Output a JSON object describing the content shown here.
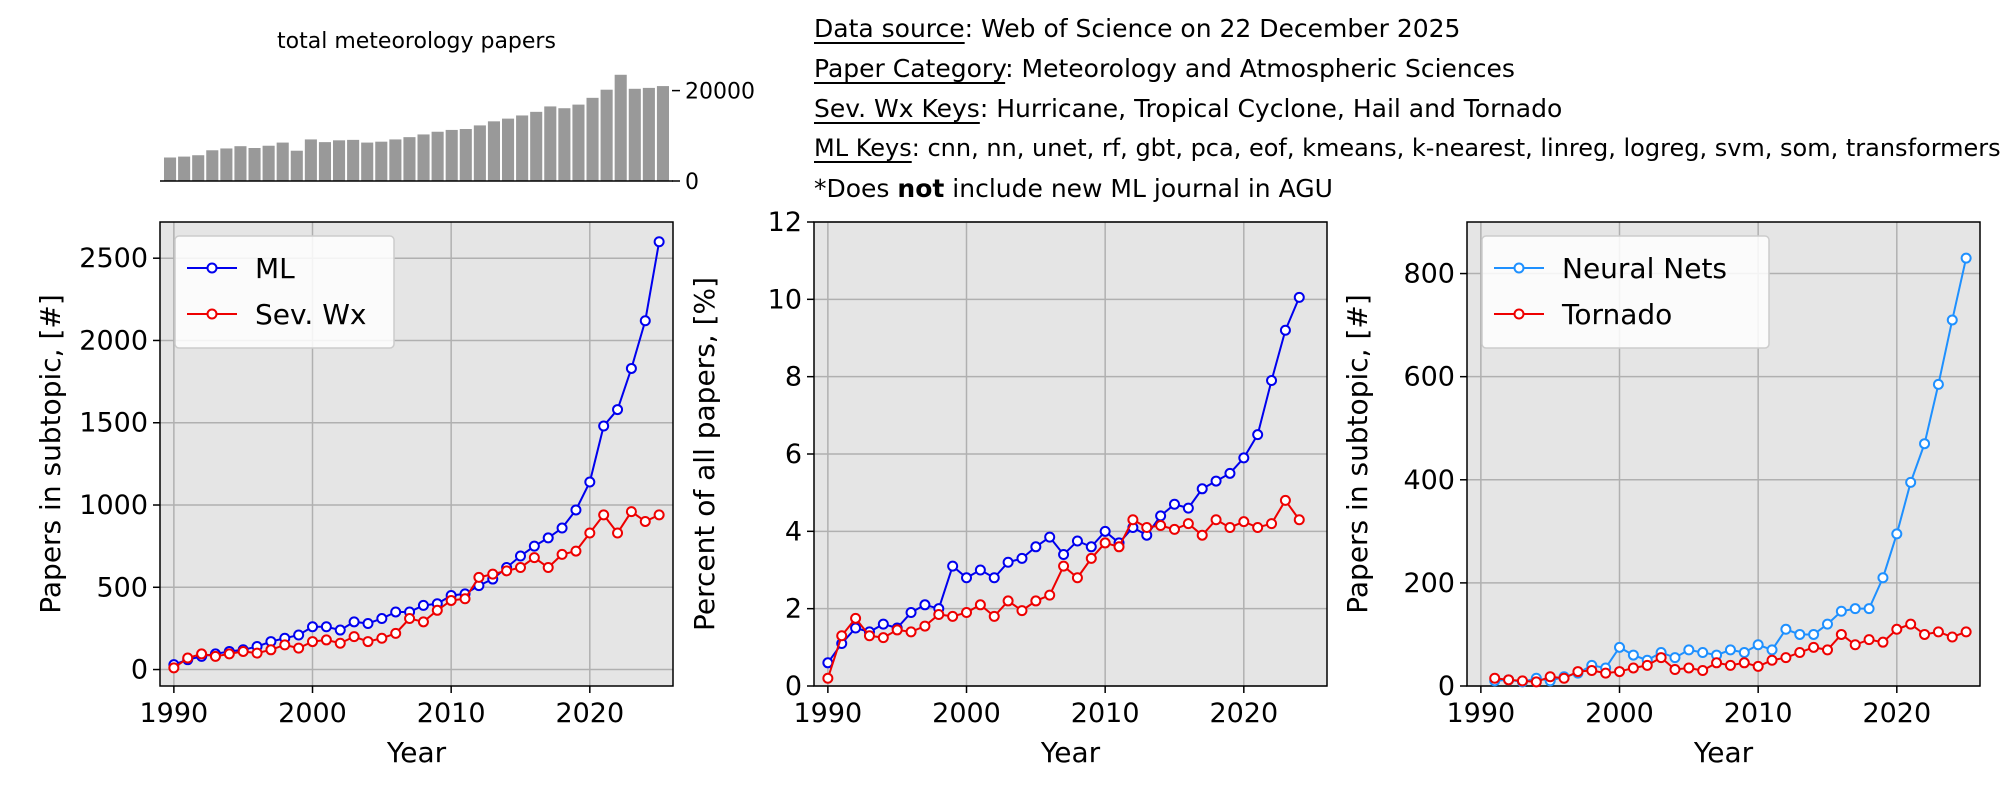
{
  "info": {
    "lines": [
      {
        "key": "Data source",
        "value": "Web of Science on 22 December 2025"
      },
      {
        "key": "Paper Category",
        "value": "Meteorology and Atmospheric Sciences"
      },
      {
        "key": "Sev. Wx Keys",
        "value": "Hurricane, Tropical Cyclone, Hail and Tornado"
      },
      {
        "key": "ML Keys",
        "value": "cnn, nn, unet, rf, gbt, pca, eof, kmeans, k-nearest, linreg, logreg, svm, som, transformers"
      }
    ],
    "note": {
      "prefix": "*Does ",
      "bold": "not",
      "suffix": " include new ML journal in AGU"
    }
  },
  "chart_data": [
    {
      "id": "total",
      "type": "bar",
      "title": "total meteorology papers",
      "x": [
        1990,
        1991,
        1992,
        1993,
        1994,
        1995,
        1996,
        1997,
        1998,
        1999,
        2000,
        2001,
        2002,
        2003,
        2004,
        2005,
        2006,
        2007,
        2008,
        2009,
        2010,
        2011,
        2012,
        2013,
        2014,
        2015,
        2016,
        2017,
        2018,
        2019,
        2020,
        2021,
        2022,
        2023,
        2024,
        2025
      ],
      "values": [
        5200,
        5400,
        5700,
        6800,
        7200,
        7700,
        7300,
        7800,
        8500,
        6700,
        9200,
        8600,
        9000,
        9100,
        8500,
        8700,
        9200,
        9700,
        10300,
        10900,
        11300,
        11500,
        12300,
        13200,
        13800,
        14500,
        15300,
        16500,
        16100,
        16900,
        18400,
        20200,
        23500,
        20400,
        20600,
        21000
      ],
      "yticks": [
        0,
        20000
      ],
      "ylim": [
        0,
        25000
      ],
      "color": "#999999"
    },
    {
      "id": "left",
      "type": "line",
      "xlabel": "Year",
      "ylabel": "Papers in subtopic, [#]",
      "xlim": [
        1989,
        2026
      ],
      "ylim": [
        -100,
        2720
      ],
      "xticks": [
        1990,
        2000,
        2010,
        2020
      ],
      "yticks": [
        0,
        500,
        1000,
        1500,
        2000,
        2500
      ],
      "legend": "top-left",
      "grid": true,
      "series": [
        {
          "name": "ML",
          "color": "#0000ee",
          "x": [
            1990,
            1991,
            1992,
            1993,
            1994,
            1995,
            1996,
            1997,
            1998,
            1999,
            2000,
            2001,
            2002,
            2003,
            2004,
            2005,
            2006,
            2007,
            2008,
            2009,
            2010,
            2011,
            2012,
            2013,
            2014,
            2015,
            2016,
            2017,
            2018,
            2019,
            2020,
            2021,
            2022,
            2023,
            2024,
            2025
          ],
          "y": [
            30,
            60,
            80,
            95,
            110,
            120,
            140,
            170,
            190,
            210,
            260,
            260,
            240,
            290,
            280,
            310,
            350,
            350,
            390,
            400,
            450,
            460,
            510,
            550,
            620,
            690,
            750,
            800,
            860,
            970,
            1140,
            1480,
            1580,
            1830,
            2120,
            2600
          ]
        },
        {
          "name": "Sev. Wx",
          "color": "#ee0000",
          "x": [
            1990,
            1991,
            1992,
            1993,
            1994,
            1995,
            1996,
            1997,
            1998,
            1999,
            2000,
            2001,
            2002,
            2003,
            2004,
            2005,
            2006,
            2007,
            2008,
            2009,
            2010,
            2011,
            2012,
            2013,
            2014,
            2015,
            2016,
            2017,
            2018,
            2019,
            2020,
            2021,
            2022,
            2023,
            2024,
            2025
          ],
          "y": [
            10,
            70,
            95,
            80,
            95,
            110,
            100,
            120,
            150,
            130,
            170,
            180,
            160,
            200,
            170,
            190,
            220,
            310,
            290,
            360,
            420,
            430,
            560,
            580,
            600,
            620,
            680,
            620,
            700,
            720,
            830,
            940,
            830,
            960,
            900,
            940
          ]
        }
      ]
    },
    {
      "id": "middle",
      "type": "line",
      "xlabel": "Year",
      "ylabel": "Percent of all papers, [%]",
      "xlim": [
        1989,
        2026
      ],
      "ylim": [
        0,
        12
      ],
      "xticks": [
        1990,
        2000,
        2010,
        2020
      ],
      "yticks": [
        0,
        2,
        4,
        6,
        8,
        10,
        12
      ],
      "grid": true,
      "series": [
        {
          "name": "ML",
          "color": "#0000ee",
          "x": [
            1990,
            1991,
            1992,
            1993,
            1994,
            1995,
            1996,
            1997,
            1998,
            1999,
            2000,
            2001,
            2002,
            2003,
            2004,
            2005,
            2006,
            2007,
            2008,
            2009,
            2010,
            2011,
            2012,
            2013,
            2014,
            2015,
            2016,
            2017,
            2018,
            2019,
            2020,
            2021,
            2022,
            2023,
            2024
          ],
          "y": [
            0.6,
            1.1,
            1.5,
            1.4,
            1.6,
            1.5,
            1.9,
            2.1,
            2.0,
            3.1,
            2.8,
            3.0,
            2.8,
            3.2,
            3.3,
            3.6,
            3.85,
            3.4,
            3.75,
            3.6,
            4.0,
            3.7,
            4.1,
            3.9,
            4.4,
            4.7,
            4.6,
            5.1,
            5.3,
            5.5,
            5.9,
            6.5,
            7.9,
            9.2,
            10.05
          ]
        },
        {
          "name": "Sev. Wx",
          "color": "#ee0000",
          "x": [
            1990,
            1991,
            1992,
            1993,
            1994,
            1995,
            1996,
            1997,
            1998,
            1999,
            2000,
            2001,
            2002,
            2003,
            2004,
            2005,
            2006,
            2007,
            2008,
            2009,
            2010,
            2011,
            2012,
            2013,
            2014,
            2015,
            2016,
            2017,
            2018,
            2019,
            2020,
            2021,
            2022,
            2023,
            2024
          ],
          "y": [
            0.2,
            1.3,
            1.75,
            1.3,
            1.25,
            1.45,
            1.4,
            1.55,
            1.85,
            1.8,
            1.9,
            2.1,
            1.8,
            2.2,
            1.95,
            2.2,
            2.35,
            3.1,
            2.8,
            3.3,
            3.7,
            3.6,
            4.3,
            4.1,
            4.15,
            4.05,
            4.2,
            3.9,
            4.3,
            4.1,
            4.25,
            4.1,
            4.2,
            4.8,
            4.3
          ]
        }
      ]
    },
    {
      "id": "right",
      "type": "line",
      "xlabel": "Year",
      "ylabel": "Papers in subtopic, [#]",
      "xlim": [
        1989,
        2026
      ],
      "ylim": [
        0,
        900
      ],
      "xticks": [
        1990,
        2000,
        2010,
        2020
      ],
      "yticks": [
        0,
        200,
        400,
        600,
        800
      ],
      "legend": "top-left",
      "grid": true,
      "series": [
        {
          "name": "Neural Nets",
          "color": "#1e90ff",
          "x": [
            1991,
            1992,
            1993,
            1994,
            1995,
            1996,
            1997,
            1998,
            1999,
            2000,
            2001,
            2002,
            2003,
            2004,
            2005,
            2006,
            2007,
            2008,
            2009,
            2010,
            2011,
            2012,
            2013,
            2014,
            2015,
            2016,
            2017,
            2018,
            2019,
            2020,
            2021,
            2022,
            2023,
            2024,
            2025
          ],
          "y": [
            10,
            12,
            8,
            15,
            10,
            18,
            25,
            40,
            35,
            75,
            60,
            50,
            65,
            55,
            70,
            65,
            60,
            70,
            65,
            80,
            70,
            110,
            100,
            100,
            120,
            145,
            150,
            150,
            210,
            295,
            395,
            470,
            585,
            710,
            830
          ]
        },
        {
          "name": "Tornado",
          "color": "#ee0000",
          "x": [
            1991,
            1992,
            1993,
            1994,
            1995,
            1996,
            1997,
            1998,
            1999,
            2000,
            2001,
            2002,
            2003,
            2004,
            2005,
            2006,
            2007,
            2008,
            2009,
            2010,
            2011,
            2012,
            2013,
            2014,
            2015,
            2016,
            2017,
            2018,
            2019,
            2020,
            2021,
            2022,
            2023,
            2024,
            2025
          ],
          "y": [
            15,
            12,
            10,
            8,
            18,
            15,
            28,
            30,
            25,
            28,
            35,
            40,
            55,
            32,
            35,
            30,
            45,
            40,
            45,
            38,
            50,
            55,
            65,
            75,
            70,
            100,
            80,
            90,
            85,
            110,
            120,
            100,
            105,
            95,
            105
          ]
        }
      ]
    }
  ]
}
